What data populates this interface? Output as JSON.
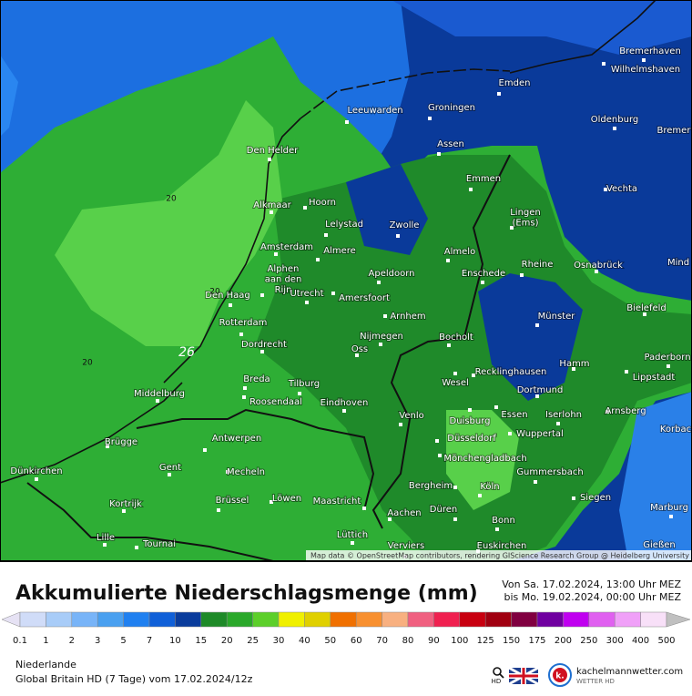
{
  "map": {
    "cities": [
      "Bremerhaven",
      "Wilhelmshaven",
      "Emden",
      "Leeuwarden",
      "Groningen",
      "Oldenburg",
      "Bremer",
      "Den Helder",
      "Assen",
      "Emmen",
      "Vechta",
      "Alkmaar",
      "Hoorn",
      [
        "Lingen",
        "(Ems)"
      ],
      "Lelystad",
      "Zwolle",
      "Amsterdam",
      "Almere",
      "Almelo",
      "Rheine",
      "Osnabrück",
      "Mind",
      [
        "Alphen",
        "aan den",
        "Rijn"
      ],
      "Apeldoorn",
      "Enschede",
      "Utrecht",
      "Amersfoort",
      "Den Haag",
      "Bielefeld",
      "Münster",
      "Arnhem",
      "Rotterdam",
      "Nijmegen",
      "Bocholt",
      "Dordrecht",
      "Oss",
      "Paderborn",
      "Hamm",
      "Lippstadt",
      "Recklinghausen",
      "Breda",
      "Tilburg",
      "Wesel",
      "Dortmund",
      "Middelburg",
      "Roosendaal",
      "Eindhoven",
      "Arnsberg",
      "Korbac",
      "Essen",
      "Iserlohn",
      "Venlo",
      "Duisburg",
      "Wuppertal",
      "Düsseldorf",
      "Brügge",
      "Antwerpen",
      "Mönchengladbach",
      "Gent",
      "Dünkirchen",
      "Mecheln",
      "Gummersbach",
      "Kortrijk",
      "Brüssel",
      "Löwen",
      "Maastricht",
      "Bergheim",
      "Köln",
      "Siegen",
      "Marburg",
      "Düren",
      "Aachen",
      "Bonn",
      "Lille",
      "Tournai",
      "Lüttich",
      "Verviers",
      "Euskirchen",
      "Gießen"
    ],
    "contour_labels": [
      "20",
      "20",
      "20",
      "26"
    ],
    "attribution": "Map data © OpenStreetMap contributors, rendering GIScience Research Group @ Heidelberg University"
  },
  "legend": {
    "title": "Akkumulierte Niederschlagsmenge (mm)",
    "period": [
      "Von Sa. 17.02.2024, 13:00 Uhr MEZ",
      "bis Mo. 19.02.2024, 00:00 Uhr MEZ"
    ],
    "ticks": [
      0.1,
      1,
      2,
      3,
      5,
      7,
      10,
      15,
      20,
      25,
      30,
      40,
      50,
      60,
      70,
      80,
      90,
      100,
      125,
      150,
      175,
      200,
      250,
      300,
      400,
      500
    ],
    "colors": [
      "#e6e2f4",
      "#d0dcf8",
      "#a8ccf8",
      "#78b4f8",
      "#4aa0f0",
      "#2080f0",
      "#1060d8",
      "#0a3c9c",
      "#1e8a28",
      "#2aa82a",
      "#5ccf2a",
      "#f0f000",
      "#e0d000",
      "#f07000",
      "#f89030",
      "#f8b080",
      "#f06080",
      "#f02050",
      "#c80010",
      "#a00010",
      "#800040",
      "#7000a0",
      "#c000f0",
      "#e060f0",
      "#f0a0f8",
      "#f8e0f8",
      "#c0c0c0"
    ]
  },
  "footer": {
    "region": "Niederlande",
    "model": "Global Britain HD (7 Tage) vom 17.02.2024/12z",
    "search_sub": "HD",
    "logo_letter": "k.",
    "brand": "kachelmannwetter.com",
    "brand_sub": "WETTER HD"
  }
}
